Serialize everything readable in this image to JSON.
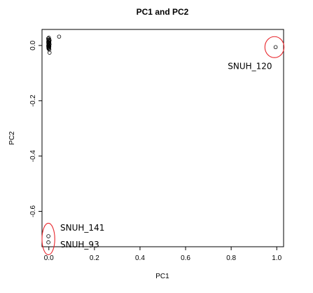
{
  "chart_data": {
    "type": "scatter",
    "title": "PC1 and PC2",
    "xlabel": "PC1",
    "ylabel": "PC2",
    "xlim": [
      -0.03,
      1.03
    ],
    "ylim": [
      -0.728,
      0.058
    ],
    "x_ticks": [
      {
        "value": 0.0,
        "label": "0.0"
      },
      {
        "value": 0.2,
        "label": "0.2"
      },
      {
        "value": 0.4,
        "label": "0.4"
      },
      {
        "value": 0.6,
        "label": "0.6"
      },
      {
        "value": 0.8,
        "label": "0.8"
      },
      {
        "value": 1.0,
        "label": "1.0"
      }
    ],
    "y_ticks": [
      {
        "value": 0.0,
        "label": "0.0"
      },
      {
        "value": -0.2,
        "label": "-0.2"
      },
      {
        "value": -0.4,
        "label": "-0.4"
      },
      {
        "value": -0.6,
        "label": "-0.6"
      }
    ],
    "grid": false,
    "points": [
      {
        "x": 0.0,
        "y": 0.028
      },
      {
        "x": -0.003,
        "y": 0.025
      },
      {
        "x": 0.002,
        "y": 0.022
      },
      {
        "x": -0.002,
        "y": 0.02
      },
      {
        "x": 0.003,
        "y": 0.018
      },
      {
        "x": -0.001,
        "y": 0.016
      },
      {
        "x": 0.001,
        "y": 0.014
      },
      {
        "x": -0.003,
        "y": 0.012
      },
      {
        "x": 0.002,
        "y": 0.01
      },
      {
        "x": 0.0,
        "y": 0.008
      },
      {
        "x": -0.002,
        "y": 0.006
      },
      {
        "x": 0.003,
        "y": 0.004
      },
      {
        "x": -0.001,
        "y": 0.002
      },
      {
        "x": 0.001,
        "y": 0.0
      },
      {
        "x": -0.003,
        "y": -0.002
      },
      {
        "x": 0.002,
        "y": -0.004
      },
      {
        "x": 0.0,
        "y": -0.006
      },
      {
        "x": -0.002,
        "y": -0.008
      },
      {
        "x": 0.001,
        "y": -0.01
      },
      {
        "x": -0.001,
        "y": -0.012
      },
      {
        "x": 0.002,
        "y": -0.015
      },
      {
        "x": 0.045,
        "y": 0.032
      },
      {
        "x": 0.003,
        "y": -0.026
      },
      {
        "x": 0.995,
        "y": -0.006
      },
      {
        "x": -0.002,
        "y": -0.69
      },
      {
        "x": -0.002,
        "y": -0.712
      }
    ],
    "annotations": [
      {
        "text": "SNUH_120",
        "x": 0.785,
        "y": -0.085
      },
      {
        "text": "SNUH_141",
        "x": 0.05,
        "y": -0.67
      },
      {
        "text": "SNUH_93",
        "x": 0.05,
        "y": -0.73
      }
    ],
    "highlight_ellipses": [
      {
        "cx": 0.99,
        "cy": -0.006,
        "rx": 0.042,
        "ry": 0.038
      },
      {
        "cx": -0.002,
        "cy": -0.7,
        "rx": 0.028,
        "ry": 0.057
      }
    ],
    "colors": {
      "points": "#000000",
      "highlight": "#e8252b",
      "axis": "#000000"
    }
  }
}
